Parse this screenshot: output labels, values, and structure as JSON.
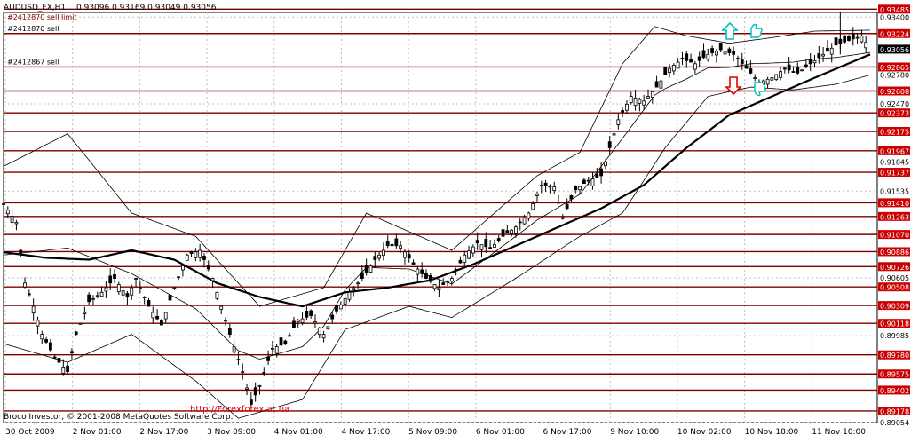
{
  "header": {
    "symbol": "AUDUSD_FX,H1",
    "ohlc": "0.93096 0.93169 0.93049 0.93056"
  },
  "footer": {
    "copyright": "Broco Investor, © 2001-2008 MetaQuotes Software Corp.",
    "watermark": "http://Forexforex.at.ua"
  },
  "colors": {
    "background": "#ffffff",
    "grid": "#c0c0c0",
    "level_line": "#800000",
    "level_label_bg": "#cc0000",
    "current_label_bg": "#000000",
    "candles": "#000000",
    "arrow_up": "#00c0c0",
    "arrow_down": "#e00000",
    "watermark": "#e00000"
  },
  "chart_data": {
    "type": "candlestick",
    "y_range": [
      0.89054,
      0.9345
    ],
    "y_ticks": [
      {
        "value": 0.934,
        "label": "0.93400"
      },
      {
        "value": 0.9278,
        "label": "0.92780"
      },
      {
        "value": 0.9247,
        "label": "0.92470"
      },
      {
        "value": 0.91845,
        "label": "0.91845"
      },
      {
        "value": 0.91535,
        "label": "0.91535"
      },
      {
        "value": 0.90605,
        "label": "0.90605"
      },
      {
        "value": 0.89985,
        "label": "0.89985"
      },
      {
        "value": 0.89054,
        "label": "0.89054"
      }
    ],
    "x_labels": [
      "30 Oct 2009",
      "2 Nov 01:00",
      "2 Nov 17:00",
      "3 Nov 09:00",
      "4 Nov 01:00",
      "4 Nov 17:00",
      "5 Nov 09:00",
      "6 Nov 01:00",
      "6 Nov 17:00",
      "9 Nov 10:00",
      "10 Nov 02:00",
      "10 Nov 18:00",
      "11 Nov 10:00"
    ],
    "levels": [
      {
        "value": 0.93485,
        "label": "0.93485"
      },
      {
        "value": 0.93224,
        "label": "0.93224"
      },
      {
        "value": 0.92865,
        "label": "0.92865"
      },
      {
        "value": 0.92608,
        "label": "0.92608"
      },
      {
        "value": 0.92373,
        "label": "0.92373"
      },
      {
        "value": 0.92175,
        "label": "0.92175"
      },
      {
        "value": 0.91967,
        "label": "0.91967"
      },
      {
        "value": 0.91737,
        "label": "0.91737"
      },
      {
        "value": 0.9141,
        "label": "0.91410"
      },
      {
        "value": 0.91263,
        "label": "0.91263"
      },
      {
        "value": 0.9107,
        "label": "0.91070"
      },
      {
        "value": 0.90886,
        "label": "0.90886"
      },
      {
        "value": 0.90726,
        "label": "0.90726"
      },
      {
        "value": 0.90508,
        "label": "0.90508"
      },
      {
        "value": 0.90309,
        "label": "0.90309"
      },
      {
        "value": 0.90118,
        "label": "0.90118"
      },
      {
        "value": 0.8978,
        "label": "0.89780"
      },
      {
        "value": 0.89575,
        "label": "0.89575"
      },
      {
        "value": 0.89402,
        "label": "0.89402"
      },
      {
        "value": 0.89178,
        "label": "0.89178"
      }
    ],
    "current_price": {
      "value": 0.93056,
      "label": "0.93056"
    },
    "orders": [
      {
        "label": "#2412870 sell",
        "value": 0.93224
      },
      {
        "label": "#2412867 sell",
        "value": 0.92865
      }
    ],
    "top_order_label": "#2412870 sell limit",
    "price_series": [
      {
        "i": 0,
        "p": 0.914
      },
      {
        "i": 6,
        "p": 0.912
      },
      {
        "i": 10,
        "p": 0.9055
      },
      {
        "i": 14,
        "p": 0.903
      },
      {
        "i": 18,
        "p": 0.9
      },
      {
        "i": 24,
        "p": 0.8975
      },
      {
        "i": 30,
        "p": 0.896
      },
      {
        "i": 34,
        "p": 0.9
      },
      {
        "i": 40,
        "p": 0.9035
      },
      {
        "i": 46,
        "p": 0.9045
      },
      {
        "i": 52,
        "p": 0.906
      },
      {
        "i": 58,
        "p": 0.904
      },
      {
        "i": 62,
        "p": 0.906
      },
      {
        "i": 68,
        "p": 0.903
      },
      {
        "i": 74,
        "p": 0.901
      },
      {
        "i": 80,
        "p": 0.905
      },
      {
        "i": 86,
        "p": 0.9085
      },
      {
        "i": 92,
        "p": 0.909
      },
      {
        "i": 98,
        "p": 0.906
      },
      {
        "i": 102,
        "p": 0.903
      },
      {
        "i": 106,
        "p": 0.9
      },
      {
        "i": 112,
        "p": 0.896
      },
      {
        "i": 116,
        "p": 0.8925
      },
      {
        "i": 120,
        "p": 0.8945
      },
      {
        "i": 126,
        "p": 0.8985
      },
      {
        "i": 132,
        "p": 0.899
      },
      {
        "i": 138,
        "p": 0.9015
      },
      {
        "i": 144,
        "p": 0.902
      },
      {
        "i": 150,
        "p": 0.9
      },
      {
        "i": 156,
        "p": 0.9025
      },
      {
        "i": 162,
        "p": 0.9045
      },
      {
        "i": 168,
        "p": 0.906
      },
      {
        "i": 174,
        "p": 0.908
      },
      {
        "i": 180,
        "p": 0.9095
      },
      {
        "i": 186,
        "p": 0.9095
      },
      {
        "i": 192,
        "p": 0.9075
      },
      {
        "i": 198,
        "p": 0.906
      },
      {
        "i": 204,
        "p": 0.905
      },
      {
        "i": 210,
        "p": 0.906
      },
      {
        "i": 216,
        "p": 0.9085
      },
      {
        "i": 222,
        "p": 0.9098
      },
      {
        "i": 228,
        "p": 0.9092
      },
      {
        "i": 234,
        "p": 0.9105
      },
      {
        "i": 240,
        "p": 0.9115
      },
      {
        "i": 246,
        "p": 0.913
      },
      {
        "i": 252,
        "p": 0.916
      },
      {
        "i": 258,
        "p": 0.9158
      },
      {
        "i": 262,
        "p": 0.9125
      },
      {
        "i": 268,
        "p": 0.9155
      },
      {
        "i": 274,
        "p": 0.9165
      },
      {
        "i": 280,
        "p": 0.917
      },
      {
        "i": 284,
        "p": 0.92
      },
      {
        "i": 288,
        "p": 0.923
      },
      {
        "i": 294,
        "p": 0.9255
      },
      {
        "i": 300,
        "p": 0.925
      },
      {
        "i": 306,
        "p": 0.9265
      },
      {
        "i": 312,
        "p": 0.9285
      },
      {
        "i": 318,
        "p": 0.9295
      },
      {
        "i": 324,
        "p": 0.929
      },
      {
        "i": 330,
        "p": 0.93
      },
      {
        "i": 336,
        "p": 0.9305
      },
      {
        "i": 342,
        "p": 0.93
      },
      {
        "i": 348,
        "p": 0.9285
      },
      {
        "i": 354,
        "p": 0.927
      },
      {
        "i": 360,
        "p": 0.9275
      },
      {
        "i": 366,
        "p": 0.9285
      },
      {
        "i": 372,
        "p": 0.928
      },
      {
        "i": 378,
        "p": 0.929
      },
      {
        "i": 384,
        "p": 0.93
      },
      {
        "i": 390,
        "p": 0.931
      },
      {
        "i": 396,
        "p": 0.9315
      },
      {
        "i": 402,
        "p": 0.932
      },
      {
        "i": 406,
        "p": 0.9306
      }
    ],
    "ma_slow": [
      {
        "i": 0,
        "p": 0.9088
      },
      {
        "i": 20,
        "p": 0.9082
      },
      {
        "i": 40,
        "p": 0.908
      },
      {
        "i": 60,
        "p": 0.909
      },
      {
        "i": 80,
        "p": 0.908
      },
      {
        "i": 100,
        "p": 0.9055
      },
      {
        "i": 120,
        "p": 0.904
      },
      {
        "i": 140,
        "p": 0.903
      },
      {
        "i": 160,
        "p": 0.9045
      },
      {
        "i": 180,
        "p": 0.905
      },
      {
        "i": 200,
        "p": 0.9058
      },
      {
        "i": 220,
        "p": 0.9075
      },
      {
        "i": 240,
        "p": 0.9095
      },
      {
        "i": 260,
        "p": 0.9115
      },
      {
        "i": 280,
        "p": 0.9135
      },
      {
        "i": 300,
        "p": 0.916
      },
      {
        "i": 320,
        "p": 0.92
      },
      {
        "i": 340,
        "p": 0.9235
      },
      {
        "i": 360,
        "p": 0.9255
      },
      {
        "i": 380,
        "p": 0.9275
      },
      {
        "i": 406,
        "p": 0.93
      }
    ],
    "bb_upper": [
      {
        "i": 0,
        "p": 0.918
      },
      {
        "i": 30,
        "p": 0.9215
      },
      {
        "i": 60,
        "p": 0.913
      },
      {
        "i": 90,
        "p": 0.9105
      },
      {
        "i": 120,
        "p": 0.903
      },
      {
        "i": 150,
        "p": 0.905
      },
      {
        "i": 170,
        "p": 0.913
      },
      {
        "i": 190,
        "p": 0.911
      },
      {
        "i": 210,
        "p": 0.909
      },
      {
        "i": 230,
        "p": 0.913
      },
      {
        "i": 250,
        "p": 0.917
      },
      {
        "i": 270,
        "p": 0.9195
      },
      {
        "i": 290,
        "p": 0.929
      },
      {
        "i": 305,
        "p": 0.933
      },
      {
        "i": 320,
        "p": 0.932
      },
      {
        "i": 340,
        "p": 0.9312
      },
      {
        "i": 360,
        "p": 0.9318
      },
      {
        "i": 380,
        "p": 0.9325
      },
      {
        "i": 406,
        "p": 0.9326
      }
    ],
    "bb_lower": [
      {
        "i": 0,
        "p": 0.899
      },
      {
        "i": 30,
        "p": 0.897
      },
      {
        "i": 60,
        "p": 0.9
      },
      {
        "i": 90,
        "p": 0.895
      },
      {
        "i": 110,
        "p": 0.891
      },
      {
        "i": 140,
        "p": 0.893
      },
      {
        "i": 160,
        "p": 0.9005
      },
      {
        "i": 190,
        "p": 0.903
      },
      {
        "i": 210,
        "p": 0.9018
      },
      {
        "i": 240,
        "p": 0.906
      },
      {
        "i": 270,
        "p": 0.9105
      },
      {
        "i": 290,
        "p": 0.913
      },
      {
        "i": 310,
        "p": 0.92
      },
      {
        "i": 330,
        "p": 0.9255
      },
      {
        "i": 350,
        "p": 0.9265
      },
      {
        "i": 370,
        "p": 0.9262
      },
      {
        "i": 390,
        "p": 0.9268
      },
      {
        "i": 406,
        "p": 0.9278
      }
    ]
  }
}
